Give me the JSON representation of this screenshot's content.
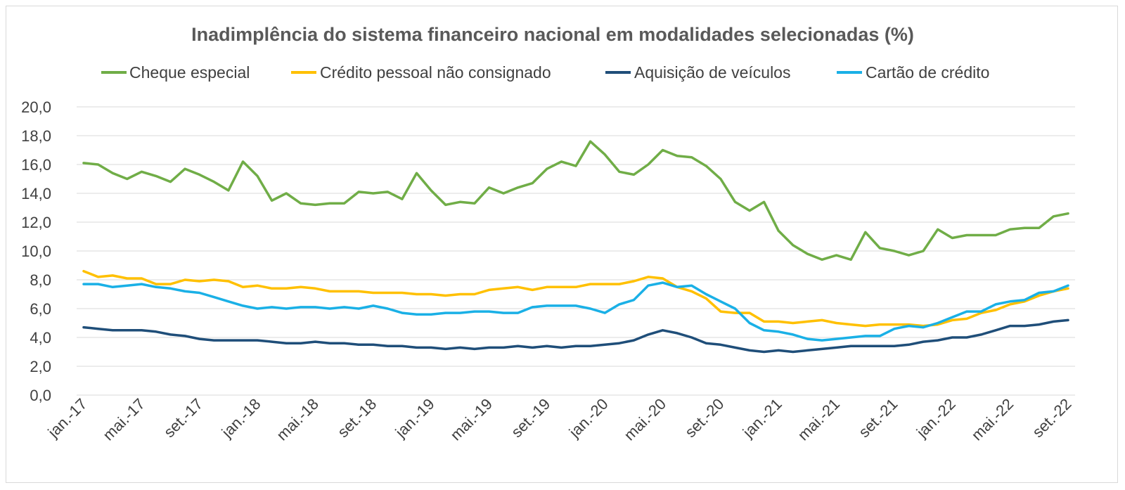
{
  "chart_data": {
    "type": "line",
    "title": "Inadimplência do sistema financeiro nacional em modalidades selecionadas (%)",
    "xlabel": "",
    "ylabel": "",
    "ylim": [
      0,
      20
    ],
    "y_ticks": [
      "0,0",
      "2,0",
      "4,0",
      "6,0",
      "8,0",
      "10,0",
      "12,0",
      "14,0",
      "16,0",
      "18,0",
      "20,0"
    ],
    "grid": true,
    "legend_position": "top",
    "x_tick_labels": [
      "jan.-17",
      "mai.-17",
      "set.-17",
      "jan.-18",
      "mai.-18",
      "set.-18",
      "jan.-19",
      "mai.-19",
      "set.-19",
      "jan.-20",
      "mai.-20",
      "set.-20",
      "jan.-21",
      "mai.-21",
      "set.-21",
      "jan.-22",
      "mai.-22",
      "set.-22"
    ],
    "x_first": "jan.-17",
    "x_last": "set.-22",
    "series": [
      {
        "name": "Cheque especial",
        "color": "#70ad47",
        "values": [
          16.1,
          16.0,
          15.4,
          15.0,
          15.5,
          15.2,
          14.8,
          15.7,
          15.3,
          14.8,
          14.2,
          16.2,
          15.2,
          13.5,
          14.0,
          13.3,
          13.2,
          13.3,
          13.3,
          14.1,
          14.0,
          14.1,
          13.6,
          15.4,
          14.2,
          13.2,
          13.4,
          13.3,
          14.4,
          14.0,
          14.4,
          14.7,
          15.7,
          16.2,
          15.9,
          17.6,
          16.7,
          15.5,
          15.3,
          16.0,
          17.0,
          16.6,
          16.5,
          15.9,
          15.0,
          13.4,
          12.8,
          13.4,
          11.4,
          10.4,
          9.8,
          9.4,
          9.7,
          9.4,
          11.3,
          10.2,
          10.0,
          9.7,
          10.0,
          11.5,
          10.9,
          11.1,
          11.1,
          11.1,
          11.5,
          11.6,
          11.6,
          12.4,
          12.6
        ]
      },
      {
        "name": "Crédito pessoal não consignado",
        "color": "#ffc000",
        "values": [
          8.6,
          8.2,
          8.3,
          8.1,
          8.1,
          7.7,
          7.7,
          8.0,
          7.9,
          8.0,
          7.9,
          7.5,
          7.6,
          7.4,
          7.4,
          7.5,
          7.4,
          7.2,
          7.2,
          7.2,
          7.1,
          7.1,
          7.1,
          7.0,
          7.0,
          6.9,
          7.0,
          7.0,
          7.3,
          7.4,
          7.5,
          7.3,
          7.5,
          7.5,
          7.5,
          7.7,
          7.7,
          7.7,
          7.9,
          8.2,
          8.1,
          7.5,
          7.2,
          6.7,
          5.8,
          5.7,
          5.7,
          5.1,
          5.1,
          5.0,
          5.1,
          5.2,
          5.0,
          4.9,
          4.8,
          4.9,
          4.9,
          4.9,
          4.8,
          4.9,
          5.2,
          5.3,
          5.7,
          5.9,
          6.3,
          6.5,
          6.9,
          7.2,
          7.4
        ]
      },
      {
        "name": "Aquisição de veículos",
        "color": "#1f4e79",
        "values": [
          4.7,
          4.6,
          4.5,
          4.5,
          4.5,
          4.4,
          4.2,
          4.1,
          3.9,
          3.8,
          3.8,
          3.8,
          3.8,
          3.7,
          3.6,
          3.6,
          3.7,
          3.6,
          3.6,
          3.5,
          3.5,
          3.4,
          3.4,
          3.3,
          3.3,
          3.2,
          3.3,
          3.2,
          3.3,
          3.3,
          3.4,
          3.3,
          3.4,
          3.3,
          3.4,
          3.4,
          3.5,
          3.6,
          3.8,
          4.2,
          4.5,
          4.3,
          4.0,
          3.6,
          3.5,
          3.3,
          3.1,
          3.0,
          3.1,
          3.0,
          3.1,
          3.2,
          3.3,
          3.4,
          3.4,
          3.4,
          3.4,
          3.5,
          3.7,
          3.8,
          4.0,
          4.0,
          4.2,
          4.5,
          4.8,
          4.8,
          4.9,
          5.1,
          5.2
        ]
      },
      {
        "name": "Cartão de crédito",
        "color": "#1ab0e6",
        "values": [
          7.7,
          7.7,
          7.5,
          7.6,
          7.7,
          7.5,
          7.4,
          7.2,
          7.1,
          6.8,
          6.5,
          6.2,
          6.0,
          6.1,
          6.0,
          6.1,
          6.1,
          6.0,
          6.1,
          6.0,
          6.2,
          6.0,
          5.7,
          5.6,
          5.6,
          5.7,
          5.7,
          5.8,
          5.8,
          5.7,
          5.7,
          6.1,
          6.2,
          6.2,
          6.2,
          6.0,
          5.7,
          6.3,
          6.6,
          7.6,
          7.8,
          7.5,
          7.6,
          7.0,
          6.5,
          6.0,
          5.0,
          4.5,
          4.4,
          4.2,
          3.9,
          3.8,
          3.9,
          4.0,
          4.1,
          4.1,
          4.6,
          4.8,
          4.7,
          5.0,
          5.4,
          5.8,
          5.8,
          6.3,
          6.5,
          6.6,
          7.1,
          7.2,
          7.6
        ]
      }
    ]
  }
}
